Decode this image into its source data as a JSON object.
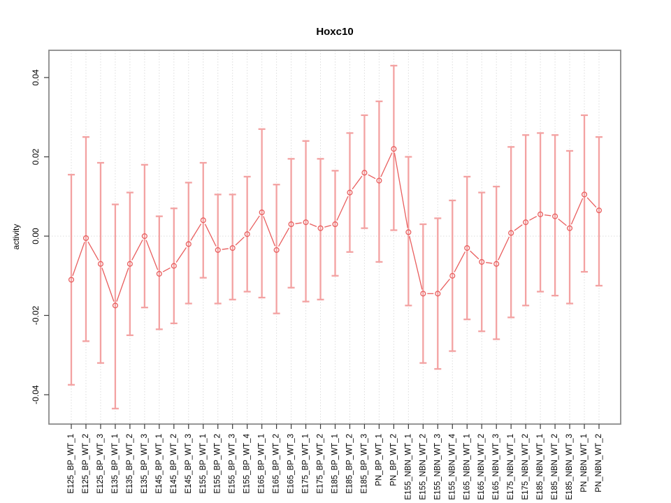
{
  "chart_data": {
    "type": "scatter",
    "title": "Hoxc10",
    "xlabel": "",
    "ylabel": "activity",
    "ylim": [
      -0.047,
      0.047
    ],
    "yticks": [
      -0.04,
      -0.02,
      0,
      0.02,
      0.04
    ],
    "ytick_labels": [
      "-0.04",
      "-0.02",
      "0.00",
      "0.02",
      "0.04"
    ],
    "grid": {
      "vertical": "dotted line at every category",
      "horizontal": "dotted line at y=0"
    },
    "legend_position": "none",
    "marker": "open-circle",
    "error_bars": true,
    "categories": [
      "E125_BP_WT_1",
      "E125_BP_WT_2",
      "E125_BP_WT_3",
      "E135_BP_WT_1",
      "E135_BP_WT_2",
      "E135_BP_WT_3",
      "E145_BP_WT_1",
      "E145_BP_WT_2",
      "E145_BP_WT_3",
      "E155_BP_WT_1",
      "E155_BP_WT_2",
      "E155_BP_WT_3",
      "E155_BP_WT_4",
      "E165_BP_WT_1",
      "E165_BP_WT_2",
      "E165_BP_WT_3",
      "E175_BP_WT_1",
      "E175_BP_WT_2",
      "E185_BP_WT_1",
      "E185_BP_WT_2",
      "E185_BP_WT_3",
      "PN_BP_WT_1",
      "PN_BP_WT_2",
      "E155_NBN_WT_1",
      "E155_NBN_WT_2",
      "E155_NBN_WT_3",
      "E155_NBN_WT_4",
      "E165_NBN_WT_1",
      "E165_NBN_WT_2",
      "E165_NBN_WT_3",
      "E175_NBN_WT_1",
      "E175_NBN_WT_2",
      "E185_NBN_WT_1",
      "E185_NBN_WT_2",
      "E185_NBN_WT_3",
      "PN_NBN_WT_1",
      "PN_NBN_WT_2"
    ],
    "series": [
      {
        "name": "activity",
        "values": [
          -0.011,
          -0.0005,
          -0.007,
          -0.0175,
          -0.007,
          0.0,
          -0.0095,
          -0.0075,
          -0.002,
          0.004,
          -0.0035,
          -0.003,
          0.0005,
          0.006,
          -0.0035,
          0.003,
          0.0035,
          0.002,
          0.003,
          0.011,
          0.016,
          0.014,
          0.022,
          0.001,
          -0.0145,
          -0.0145,
          -0.01,
          -0.003,
          -0.0065,
          -0.007,
          0.0008,
          0.0035,
          0.0055,
          0.005,
          0.002,
          0.0105,
          0.0065
        ],
        "ci_upper": [
          0.0155,
          0.025,
          0.0185,
          0.008,
          0.011,
          0.018,
          0.005,
          0.007,
          0.0135,
          0.0185,
          0.0105,
          0.0105,
          0.015,
          0.027,
          0.013,
          0.0195,
          0.024,
          0.0195,
          0.0165,
          0.026,
          0.0305,
          0.034,
          0.043,
          0.02,
          0.003,
          0.0045,
          0.009,
          0.015,
          0.011,
          0.0125,
          0.0225,
          0.0255,
          0.026,
          0.0255,
          0.0215,
          0.0305,
          0.025
        ],
        "ci_lower": [
          -0.0375,
          -0.0265,
          -0.032,
          -0.0435,
          -0.025,
          -0.018,
          -0.0235,
          -0.022,
          -0.017,
          -0.0105,
          -0.017,
          -0.016,
          -0.014,
          -0.0155,
          -0.0195,
          -0.013,
          -0.0165,
          -0.016,
          -0.01,
          -0.004,
          0.002,
          -0.0065,
          0.0015,
          -0.0175,
          -0.032,
          -0.0335,
          -0.029,
          -0.021,
          -0.024,
          -0.026,
          -0.0205,
          -0.0175,
          -0.014,
          -0.015,
          -0.017,
          -0.009,
          -0.0125
        ]
      }
    ],
    "colors": {
      "point_line": "#e95e5e",
      "error_bar": "#f3a2a2",
      "grid": "#dcdcdc",
      "box": "#8a8a8a",
      "tick": "#3a3a3a",
      "text": "#000000",
      "background": "#ffffff"
    }
  }
}
